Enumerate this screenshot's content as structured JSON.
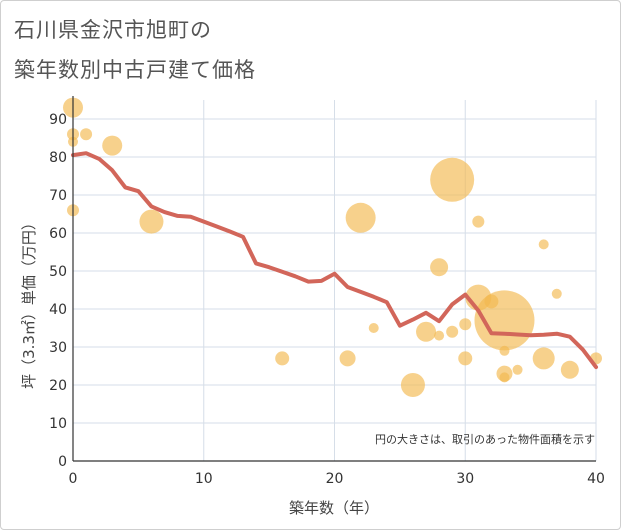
{
  "title_line1": "石川県金沢市旭町の",
  "title_line2": "築年数別中古戸建て価格",
  "colors": {
    "bubble": "#f3b94e",
    "line": "#d2665a",
    "grid": "#d6dee8",
    "axis": "#333333"
  },
  "chart_data": {
    "type": "scatter",
    "xlabel": "築年数（年）",
    "ylabel": "坪（3.3㎡）単価（万円）",
    "xlim": [
      0,
      40
    ],
    "ylim": [
      0,
      95
    ],
    "xticks": [
      0,
      10,
      20,
      30,
      40
    ],
    "yticks": [
      0,
      10,
      20,
      30,
      40,
      50,
      60,
      70,
      80,
      90
    ],
    "grid": true,
    "annotation": "円の大きさは、取引のあった物件面積を示す",
    "bubbles": [
      {
        "x": 0,
        "y": 93,
        "size": 10
      },
      {
        "x": 0,
        "y": 86,
        "size": 6
      },
      {
        "x": 0,
        "y": 84,
        "size": 5
      },
      {
        "x": 1,
        "y": 86,
        "size": 6
      },
      {
        "x": 3,
        "y": 83,
        "size": 10
      },
      {
        "x": 0,
        "y": 66,
        "size": 6
      },
      {
        "x": 6,
        "y": 63,
        "size": 12
      },
      {
        "x": 16,
        "y": 27,
        "size": 7
      },
      {
        "x": 21,
        "y": 27,
        "size": 8
      },
      {
        "x": 22,
        "y": 64,
        "size": 15
      },
      {
        "x": 23,
        "y": 35,
        "size": 5
      },
      {
        "x": 26,
        "y": 20,
        "size": 12
      },
      {
        "x": 27,
        "y": 34,
        "size": 10
      },
      {
        "x": 28,
        "y": 51,
        "size": 9
      },
      {
        "x": 28,
        "y": 33,
        "size": 5
      },
      {
        "x": 29,
        "y": 74,
        "size": 22
      },
      {
        "x": 29,
        "y": 34,
        "size": 6
      },
      {
        "x": 30,
        "y": 36,
        "size": 6
      },
      {
        "x": 30,
        "y": 27,
        "size": 7
      },
      {
        "x": 31,
        "y": 63,
        "size": 6
      },
      {
        "x": 31,
        "y": 43,
        "size": 13
      },
      {
        "x": 32,
        "y": 42,
        "size": 7
      },
      {
        "x": 33,
        "y": 37,
        "size": 30
      },
      {
        "x": 33,
        "y": 29,
        "size": 5
      },
      {
        "x": 33,
        "y": 23,
        "size": 8
      },
      {
        "x": 33,
        "y": 22,
        "size": 5
      },
      {
        "x": 34,
        "y": 24,
        "size": 5
      },
      {
        "x": 36,
        "y": 57,
        "size": 5
      },
      {
        "x": 36,
        "y": 27,
        "size": 11
      },
      {
        "x": 37,
        "y": 44,
        "size": 5
      },
      {
        "x": 38,
        "y": 24,
        "size": 9
      },
      {
        "x": 40,
        "y": 27,
        "size": 6
      }
    ],
    "series": [
      {
        "x": [
          0,
          1,
          2,
          3,
          4,
          5,
          6,
          7,
          8,
          9,
          10,
          11,
          12,
          13,
          14,
          15,
          16,
          17,
          18,
          19,
          20,
          21,
          22,
          23,
          24,
          25,
          26,
          27,
          28,
          29,
          30,
          31,
          32,
          33,
          34,
          35,
          36,
          37,
          38,
          39,
          40
        ],
        "y": [
          80.5,
          81,
          79.5,
          76.5,
          72,
          71,
          67,
          65.5,
          64.5,
          64.3,
          63,
          61.7,
          60.4,
          59,
          52,
          51,
          49.8,
          48.6,
          47.2,
          47.4,
          49.3,
          45.8,
          44.5,
          43.2,
          41.8,
          35.6,
          37.2,
          39,
          36.8,
          41.2,
          43.8,
          39.6,
          33.6,
          33.5,
          33.3,
          33.1,
          33.2,
          33.5,
          32.7,
          29.3,
          24.7
        ]
      }
    ]
  }
}
